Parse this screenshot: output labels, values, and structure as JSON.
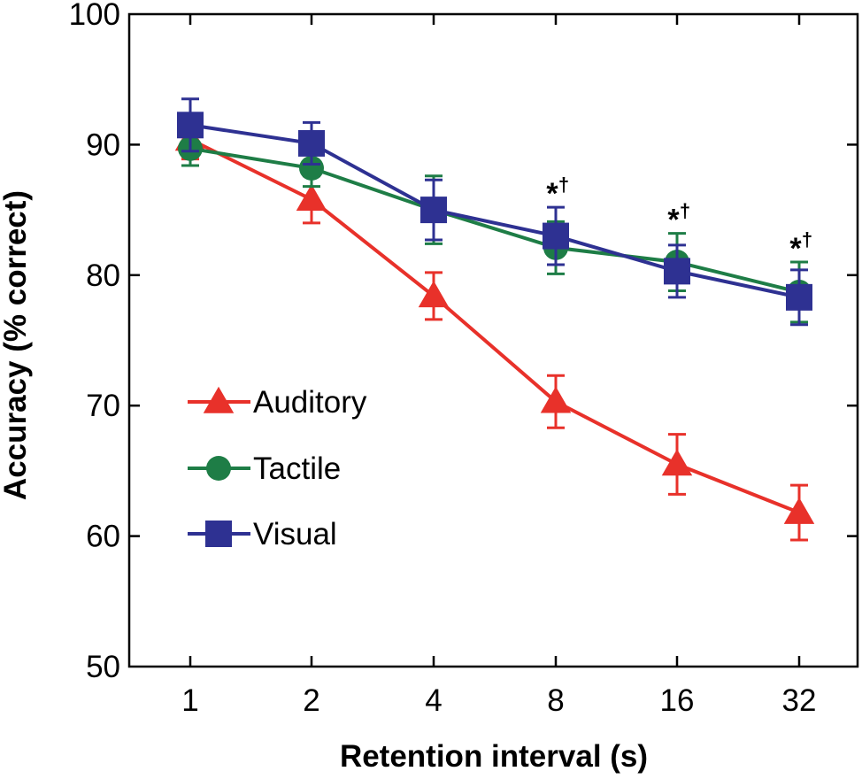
{
  "chart_data": {
    "type": "line",
    "title": "",
    "xlabel": "Retention interval (s)",
    "ylabel": "Accuracy (% correct)",
    "x_scale": "log2",
    "categories": [
      "1",
      "2",
      "4",
      "8",
      "16",
      "32"
    ],
    "x": [
      1,
      2,
      4,
      8,
      16,
      32
    ],
    "ylim": [
      50,
      100
    ],
    "yticks": [
      50,
      60,
      70,
      80,
      90,
      100
    ],
    "ytick_labels": [
      "50",
      "60",
      "70",
      "80",
      "90",
      "100"
    ],
    "grid": false,
    "legend_position": "lower-left",
    "series": [
      {
        "name": "Auditory",
        "color": "#e8312a",
        "marker": "triangle",
        "values": [
          90.4,
          85.8,
          78.4,
          70.3,
          65.5,
          61.8
        ],
        "error": [
          1.5,
          1.8,
          1.8,
          2.0,
          2.3,
          2.1
        ]
      },
      {
        "name": "Tactile",
        "color": "#1e7d46",
        "marker": "circle",
        "values": [
          89.7,
          88.2,
          85.0,
          82.1,
          81.0,
          78.7
        ],
        "error": [
          1.3,
          1.4,
          2.6,
          2.0,
          2.2,
          2.3
        ]
      },
      {
        "name": "Visual",
        "color": "#2e3192",
        "marker": "square",
        "values": [
          91.5,
          90.1,
          85.0,
          83.0,
          80.3,
          78.3
        ],
        "error": [
          2.0,
          1.6,
          2.3,
          2.2,
          2.0,
          2.1
        ]
      }
    ],
    "annotations": [
      {
        "x": 8,
        "text": "*",
        "superscript": "†"
      },
      {
        "x": 16,
        "text": "*",
        "superscript": "†"
      },
      {
        "x": 32,
        "text": "*",
        "superscript": "†"
      }
    ]
  }
}
